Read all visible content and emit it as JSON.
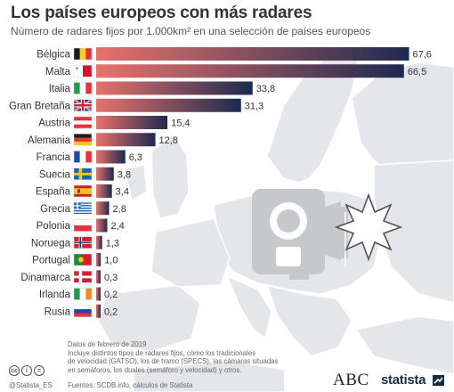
{
  "header": {
    "title": "Los países europeos con más radares",
    "subtitle": "Número de radares fijos por 1.000km² en una selección de países europeos"
  },
  "footer": {
    "notes": [
      "Datos de febrero de 2019",
      "Incluye distintos tipos de radares fijos, como los tradicionales",
      "de velocidad (GATSO), los de tramo (SPECS), las cámaras situadas",
      "en semáforos, los duales (semáforo y velocidad) y otros."
    ],
    "sources": "Fuentes: SCDB.info, cálculos de Statista",
    "handle": "@Statista_ES",
    "brand_abc": "ABC",
    "brand_statista": "statista"
  },
  "colors": {
    "bar_start": "#e8726c",
    "bar_end": "#1d2a4f",
    "map_land": "#e4e6ea",
    "map_border": "#ffffff",
    "map_sea": "#ffffff",
    "icon_gray": "#c6c8cc"
  },
  "chart_data": {
    "type": "bar",
    "orientation": "horizontal",
    "categories": [
      "Bélgica",
      "Malta",
      "Italia",
      "Gran Bretaña",
      "Austria",
      "Alemania",
      "Francia",
      "Suecia",
      "España",
      "Grecia",
      "Polonia",
      "Noruega",
      "Portugal",
      "Dinamarca",
      "Irlanda",
      "Rusia"
    ],
    "values": [
      67.6,
      66.5,
      33.8,
      31.3,
      15.4,
      12.8,
      6.3,
      3.8,
      3.4,
      2.8,
      2.4,
      1.3,
      1.0,
      0.3,
      0.2,
      0.2
    ],
    "value_labels": [
      "67,6",
      "66,5",
      "33,8",
      "31,3",
      "15,4",
      "12,8",
      "6,3",
      "3,8",
      "3,4",
      "2,8",
      "2,4",
      "1,3",
      "1,0",
      "0,3",
      "0,2",
      "0,2"
    ],
    "flags": [
      "flag-belgium-icon",
      "flag-malta-icon",
      "flag-italy-icon",
      "flag-uk-icon",
      "flag-austria-icon",
      "flag-germany-icon",
      "flag-france-icon",
      "flag-sweden-icon",
      "flag-spain-icon",
      "flag-greece-icon",
      "flag-poland-icon",
      "flag-norway-icon",
      "flag-portugal-icon",
      "flag-denmark-icon",
      "flag-ireland-icon",
      "flag-russia-icon"
    ],
    "xlim": [
      0,
      70
    ],
    "grid": false,
    "legend": "none"
  }
}
